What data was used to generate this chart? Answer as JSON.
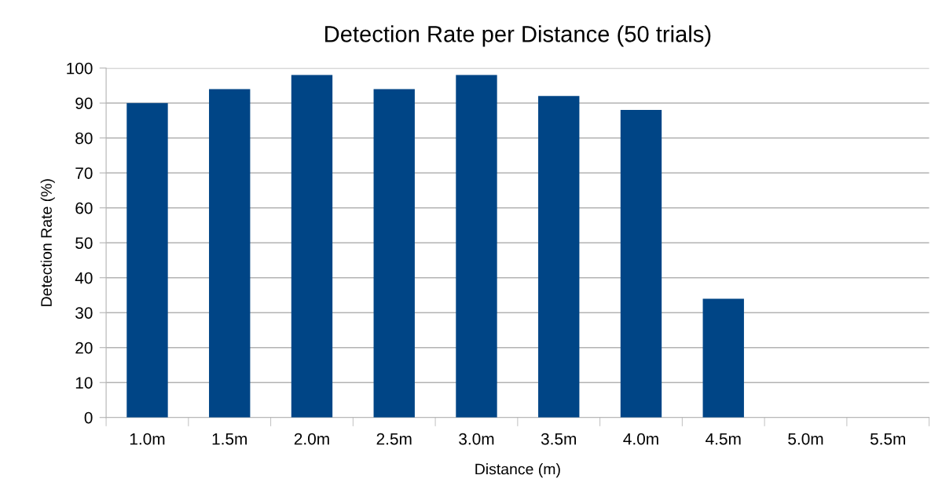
{
  "chart_data": {
    "type": "bar",
    "title": "Detection Rate per Distance (50 trials)",
    "xlabel": "Distance (m)",
    "ylabel": "Detection Rate (%)",
    "categories": [
      "1.0m",
      "1.5m",
      "2.0m",
      "2.5m",
      "3.0m",
      "3.5m",
      "4.0m",
      "4.5m",
      "5.0m",
      "5.5m"
    ],
    "values": [
      90,
      94,
      98,
      94,
      98,
      92,
      88,
      34,
      0,
      0
    ],
    "color": "#004586",
    "ylim": [
      0,
      100
    ],
    "yticks": [
      0,
      10,
      20,
      30,
      40,
      50,
      60,
      70,
      80,
      90,
      100
    ],
    "grid": "y",
    "legend": false
  }
}
